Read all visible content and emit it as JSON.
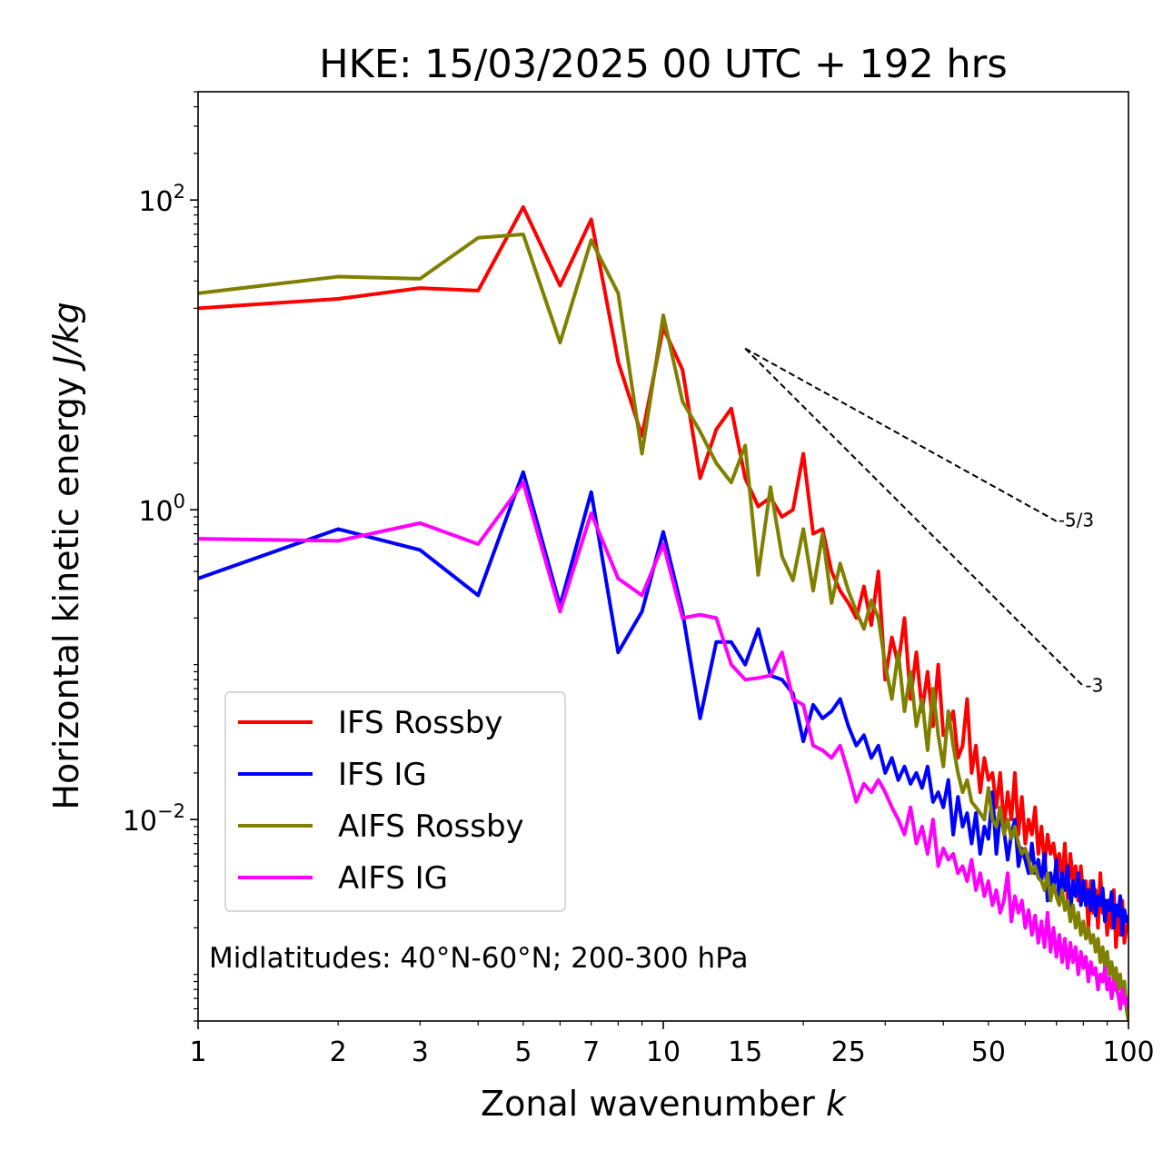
{
  "chart_data": {
    "type": "line",
    "title": "HKE: 15/03/2025 00 UTC + 192 hrs",
    "xlabel_main": "Zonal wavenumber ",
    "xlabel_var": "k",
    "ylabel_main": "Horizontal kinetic energy ",
    "ylabel_unit": "J/kg",
    "x_scale": "log",
    "y_scale": "log",
    "xlim": [
      1,
      100
    ],
    "ylim": [
      0.0005,
      500
    ],
    "x_ticks": [
      1,
      2,
      3,
      5,
      7,
      10,
      15,
      25,
      50,
      100
    ],
    "x_tick_labels": [
      "1",
      "2",
      "3",
      "5",
      "7",
      "10",
      "15",
      "25",
      "50",
      "100"
    ],
    "y_ticks": [
      {
        "value": 0.01,
        "base": "10",
        "exp": "−2"
      },
      {
        "value": 1,
        "base": "10",
        "exp": "0"
      },
      {
        "value": 100,
        "base": "10",
        "exp": "2"
      }
    ],
    "grid": false,
    "legend_position": "lower-left",
    "annotation": "Midlatitudes: 40°N-60°N; 200-300 hPa",
    "reference_lines": [
      {
        "label": "-5/3",
        "slope": -1.6667,
        "x_start": 15,
        "y_start": 11.0,
        "x_end": 70
      },
      {
        "label": "-3",
        "slope": -3,
        "x_start": 15,
        "y_start": 11.0,
        "x_end": 80
      }
    ],
    "series": [
      {
        "name": "IFS Rossby",
        "color": "#ff0000",
        "x": [
          1,
          2,
          3,
          4,
          5,
          6,
          7,
          8,
          9,
          10,
          11,
          12,
          13,
          14,
          15,
          16,
          17,
          18,
          19,
          20,
          21,
          22,
          23,
          24,
          25,
          26,
          27,
          28,
          29,
          30,
          31,
          32,
          33,
          34,
          35,
          36,
          37,
          38,
          39,
          40,
          41,
          42,
          43,
          44,
          45,
          46,
          47,
          48,
          49,
          50,
          51,
          52,
          53,
          54,
          55,
          56,
          57,
          58,
          59,
          60,
          61,
          62,
          63,
          64,
          65,
          66,
          67,
          68,
          69,
          70,
          71,
          72,
          73,
          74,
          75,
          76,
          77,
          78,
          79,
          80,
          81,
          82,
          83,
          84,
          85,
          86,
          87,
          88,
          89,
          90,
          91,
          92,
          93,
          94,
          95,
          96,
          97,
          98,
          99,
          100
        ],
        "y": [
          20,
          23,
          27,
          26,
          90,
          28,
          75,
          9,
          3,
          15,
          8,
          1.6,
          3.3,
          4.5,
          1.6,
          1.05,
          1.2,
          0.9,
          1.0,
          2.3,
          0.7,
          0.75,
          0.4,
          0.3,
          0.25,
          0.2,
          0.32,
          0.18,
          0.4,
          0.08,
          0.15,
          0.1,
          0.2,
          0.06,
          0.12,
          0.05,
          0.09,
          0.04,
          0.1,
          0.035,
          0.04,
          0.05,
          0.025,
          0.03,
          0.06,
          0.02,
          0.03,
          0.015,
          0.025,
          0.018,
          0.02,
          0.012,
          0.02,
          0.009,
          0.015,
          0.01,
          0.02,
          0.008,
          0.014,
          0.007,
          0.01,
          0.008,
          0.012,
          0.006,
          0.009,
          0.005,
          0.008,
          0.006,
          0.007,
          0.005,
          0.006,
          0.004,
          0.007,
          0.003,
          0.006,
          0.004,
          0.005,
          0.003,
          0.005,
          0.003,
          0.004,
          0.002,
          0.004,
          0.0025,
          0.0035,
          0.002,
          0.0045,
          0.0025,
          0.003,
          0.0018,
          0.003,
          0.002,
          0.0035,
          0.0015,
          0.0025,
          0.0018,
          0.003,
          0.0016,
          0.002,
          0.0022
        ]
      },
      {
        "name": "IFS IG",
        "color": "#0000ff",
        "x": [
          1,
          2,
          3,
          4,
          5,
          6,
          7,
          8,
          9,
          10,
          11,
          12,
          13,
          14,
          15,
          16,
          17,
          18,
          19,
          20,
          21,
          22,
          23,
          24,
          25,
          26,
          27,
          28,
          29,
          30,
          31,
          32,
          33,
          34,
          35,
          36,
          37,
          38,
          39,
          40,
          41,
          42,
          43,
          44,
          45,
          46,
          47,
          48,
          49,
          50,
          51,
          52,
          53,
          54,
          55,
          56,
          57,
          58,
          59,
          60,
          61,
          62,
          63,
          64,
          65,
          66,
          67,
          68,
          69,
          70,
          71,
          72,
          73,
          74,
          75,
          76,
          77,
          78,
          79,
          80,
          81,
          82,
          83,
          84,
          85,
          86,
          87,
          88,
          89,
          90,
          91,
          92,
          93,
          94,
          95,
          96,
          97,
          98,
          99,
          100
        ],
        "y": [
          0.36,
          0.75,
          0.55,
          0.28,
          1.75,
          0.24,
          1.3,
          0.12,
          0.22,
          0.72,
          0.22,
          0.045,
          0.14,
          0.14,
          0.1,
          0.17,
          0.085,
          0.08,
          0.065,
          0.032,
          0.055,
          0.045,
          0.05,
          0.06,
          0.04,
          0.03,
          0.035,
          0.025,
          0.03,
          0.02,
          0.025,
          0.018,
          0.022,
          0.017,
          0.02,
          0.016,
          0.022,
          0.013,
          0.015,
          0.012,
          0.018,
          0.008,
          0.014,
          0.009,
          0.011,
          0.007,
          0.011,
          0.006,
          0.009,
          0.0075,
          0.015,
          0.006,
          0.011,
          0.0085,
          0.0055,
          0.008,
          0.01,
          0.005,
          0.0065,
          0.0055,
          0.0045,
          0.007,
          0.0045,
          0.0055,
          0.004,
          0.006,
          0.003,
          0.0045,
          0.0035,
          0.0055,
          0.003,
          0.0045,
          0.0035,
          0.005,
          0.0025,
          0.004,
          0.0032,
          0.0045,
          0.0028,
          0.004,
          0.0028,
          0.0035,
          0.0026,
          0.004,
          0.0024,
          0.0032,
          0.0028,
          0.0036,
          0.0022,
          0.003,
          0.0026,
          0.0034,
          0.002,
          0.0028,
          0.0024,
          0.0032,
          0.0018,
          0.0026,
          0.0022,
          0.0024
        ]
      },
      {
        "name": "AIFS Rossby",
        "color": "#808000",
        "x": [
          1,
          2,
          3,
          4,
          5,
          6,
          7,
          8,
          9,
          10,
          11,
          12,
          13,
          14,
          15,
          16,
          17,
          18,
          19,
          20,
          21,
          22,
          23,
          24,
          25,
          26,
          27,
          28,
          29,
          30,
          31,
          32,
          33,
          34,
          35,
          36,
          37,
          38,
          39,
          40,
          41,
          42,
          43,
          44,
          45,
          46,
          47,
          48,
          49,
          50,
          51,
          52,
          53,
          54,
          55,
          56,
          57,
          58,
          59,
          60,
          61,
          62,
          63,
          64,
          65,
          66,
          67,
          68,
          69,
          70,
          71,
          72,
          73,
          74,
          75,
          76,
          77,
          78,
          79,
          80,
          81,
          82,
          83,
          84,
          85,
          86,
          87,
          88,
          89,
          90,
          91,
          92,
          93,
          94,
          95,
          96,
          97,
          98,
          99,
          100
        ],
        "y": [
          25,
          32,
          31,
          57,
          60,
          12,
          55,
          25,
          2.3,
          18,
          5,
          3.2,
          2.0,
          1.5,
          2.6,
          0.38,
          1.4,
          0.5,
          0.35,
          0.75,
          0.3,
          0.7,
          0.25,
          0.45,
          0.3,
          0.22,
          0.17,
          0.26,
          0.2,
          0.1,
          0.06,
          0.12,
          0.05,
          0.09,
          0.04,
          0.06,
          0.028,
          0.07,
          0.035,
          0.022,
          0.05,
          0.03,
          0.02,
          0.015,
          0.018,
          0.013,
          0.012,
          0.011,
          0.01,
          0.016,
          0.01,
          0.009,
          0.012,
          0.008,
          0.01,
          0.0075,
          0.009,
          0.007,
          0.006,
          0.0065,
          0.0055,
          0.0045,
          0.005,
          0.0042,
          0.004,
          0.0035,
          0.0045,
          0.003,
          0.0038,
          0.0032,
          0.0028,
          0.0035,
          0.0026,
          0.003,
          0.0022,
          0.0028,
          0.002,
          0.0025,
          0.0018,
          0.0022,
          0.0017,
          0.002,
          0.0016,
          0.0018,
          0.0014,
          0.0017,
          0.0012,
          0.0015,
          0.0011,
          0.0014,
          0.001,
          0.0012,
          0.0009,
          0.0011,
          0.0008,
          0.001,
          0.0007,
          0.0009,
          0.0006,
          0.0005
        ]
      },
      {
        "name": "AIFS IG",
        "color": "#ff00ff",
        "x": [
          1,
          2,
          3,
          4,
          5,
          6,
          7,
          8,
          9,
          10,
          11,
          12,
          13,
          14,
          15,
          16,
          17,
          18,
          19,
          20,
          21,
          22,
          23,
          24,
          25,
          26,
          27,
          28,
          29,
          30,
          31,
          32,
          33,
          34,
          35,
          36,
          37,
          38,
          39,
          40,
          41,
          42,
          43,
          44,
          45,
          46,
          47,
          48,
          49,
          50,
          51,
          52,
          53,
          54,
          55,
          56,
          57,
          58,
          59,
          60,
          61,
          62,
          63,
          64,
          65,
          66,
          67,
          68,
          69,
          70,
          71,
          72,
          73,
          74,
          75,
          76,
          77,
          78,
          79,
          80,
          81,
          82,
          83,
          84,
          85,
          86,
          87,
          88,
          89,
          90,
          91,
          92,
          93,
          94,
          95,
          96,
          97,
          98,
          99,
          100
        ],
        "y": [
          0.65,
          0.63,
          0.82,
          0.6,
          1.5,
          0.22,
          0.95,
          0.36,
          0.28,
          0.6,
          0.2,
          0.21,
          0.2,
          0.1,
          0.08,
          0.082,
          0.085,
          0.12,
          0.06,
          0.055,
          0.03,
          0.028,
          0.025,
          0.03,
          0.02,
          0.013,
          0.017,
          0.015,
          0.018,
          0.015,
          0.012,
          0.01,
          0.008,
          0.012,
          0.007,
          0.009,
          0.006,
          0.01,
          0.005,
          0.0065,
          0.0055,
          0.006,
          0.0045,
          0.005,
          0.004,
          0.0055,
          0.0035,
          0.0045,
          0.0032,
          0.004,
          0.0028,
          0.0035,
          0.0025,
          0.003,
          0.0045,
          0.0022,
          0.0032,
          0.0025,
          0.003,
          0.002,
          0.0026,
          0.0018,
          0.0024,
          0.0016,
          0.0022,
          0.0015,
          0.0025,
          0.0014,
          0.002,
          0.0013,
          0.0018,
          0.0012,
          0.0017,
          0.0011,
          0.0016,
          0.0012,
          0.0015,
          0.001,
          0.0014,
          0.0011,
          0.0013,
          0.0009,
          0.0012,
          0.001,
          0.0011,
          0.0008,
          0.001,
          0.0009,
          0.0011,
          0.0008,
          0.00095,
          0.0007,
          0.0009,
          0.0008,
          0.00075,
          0.0006,
          0.0008,
          0.00065,
          0.0007,
          0.0006
        ]
      }
    ]
  }
}
